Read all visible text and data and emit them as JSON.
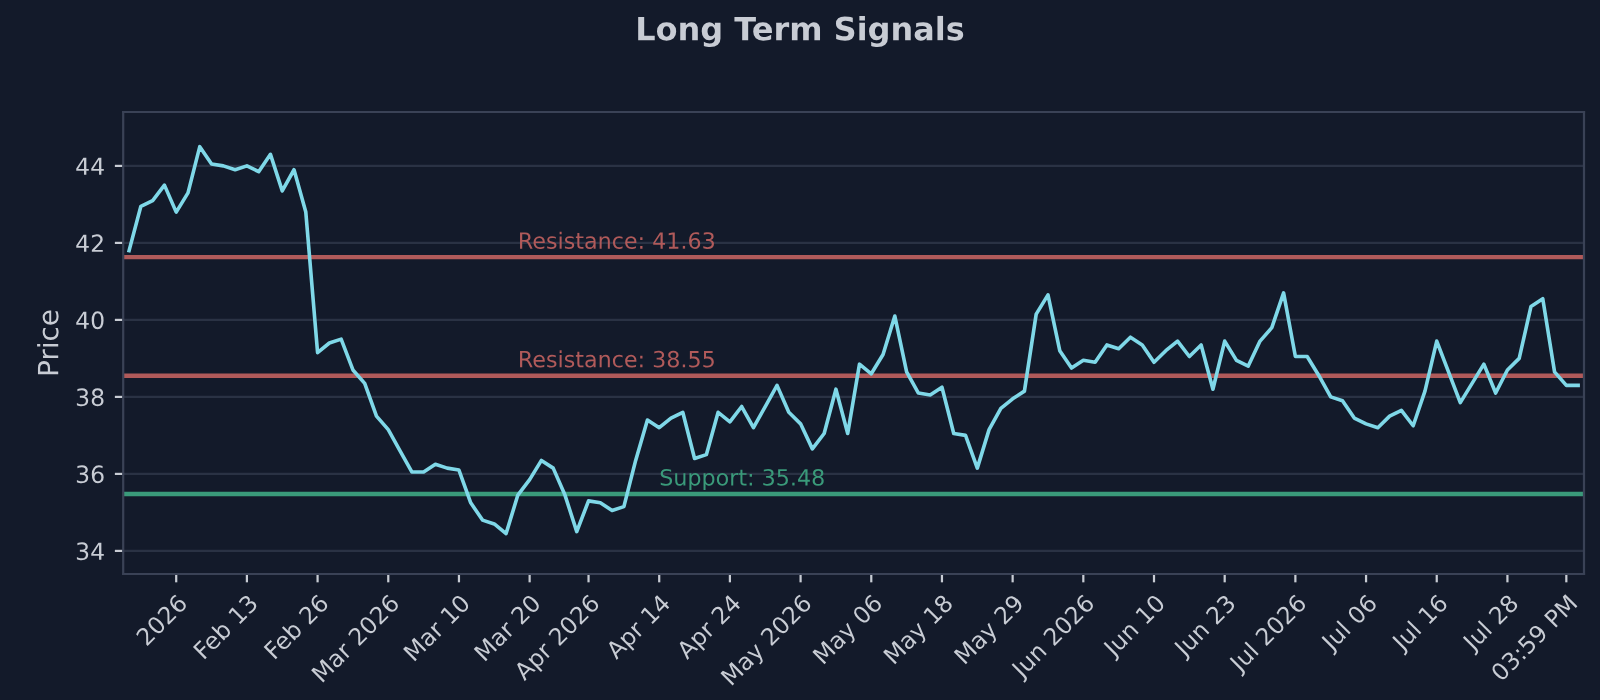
{
  "chart_data": {
    "type": "line",
    "title": "Long Term Signals",
    "ylabel": "Price",
    "categories": [
      null,
      null,
      null,
      null,
      "2026",
      null,
      null,
      null,
      null,
      null,
      "Feb 13",
      null,
      null,
      null,
      null,
      null,
      "Feb 26",
      null,
      null,
      null,
      null,
      null,
      "Mar 2026",
      null,
      null,
      null,
      null,
      null,
      "Mar 10",
      null,
      null,
      null,
      null,
      null,
      "Mar 20",
      null,
      null,
      null,
      null,
      "Apr 2026",
      null,
      null,
      null,
      null,
      null,
      "Apr 14",
      null,
      null,
      null,
      null,
      null,
      "Apr 24",
      null,
      null,
      null,
      null,
      null,
      "May 2026",
      null,
      null,
      null,
      null,
      null,
      "May 06",
      null,
      null,
      null,
      null,
      null,
      "May 18",
      null,
      null,
      null,
      null,
      null,
      "May 29",
      null,
      null,
      null,
      null,
      null,
      "Jun 2026",
      null,
      null,
      null,
      null,
      null,
      "Jun 10",
      null,
      null,
      null,
      null,
      null,
      "Jun 23",
      null,
      null,
      null,
      null,
      null,
      "Jul 2026",
      null,
      null,
      null,
      null,
      null,
      "Jul 06",
      null,
      null,
      null,
      null,
      null,
      "Jul 16",
      null,
      null,
      null,
      null,
      null,
      "Jul 28",
      null,
      null,
      null,
      null,
      "03:59 PM",
      null
    ],
    "series": [
      {
        "color": "#7fd8e8",
        "values": [
          41.8,
          42.95,
          43.1,
          43.5,
          42.8,
          43.3,
          44.5,
          44.05,
          44.0,
          43.9,
          44.0,
          43.85,
          44.3,
          43.35,
          43.9,
          42.8,
          39.15,
          39.4,
          39.5,
          38.7,
          38.35,
          37.5,
          37.15,
          36.6,
          36.05,
          36.05,
          36.25,
          36.15,
          36.1,
          35.25,
          34.8,
          34.7,
          34.45,
          35.45,
          35.85,
          36.35,
          36.15,
          35.45,
          34.5,
          35.3,
          35.25,
          35.05,
          35.15,
          36.35,
          37.4,
          37.2,
          37.45,
          37.6,
          36.4,
          36.5,
          37.6,
          37.35,
          37.75,
          37.2,
          37.75,
          38.3,
          37.6,
          37.3,
          36.65,
          37.05,
          38.2,
          37.05,
          38.85,
          38.6,
          39.1,
          40.1,
          38.65,
          38.1,
          38.05,
          38.25,
          37.05,
          37.0,
          36.15,
          37.15,
          37.7,
          37.95,
          38.15,
          40.15,
          40.65,
          39.2,
          38.75,
          38.95,
          38.9,
          39.35,
          39.25,
          39.55,
          39.35,
          38.9,
          39.2,
          39.45,
          39.05,
          39.35,
          38.2,
          39.45,
          38.95,
          38.8,
          39.45,
          39.8,
          40.7,
          39.05,
          39.05,
          38.55,
          38.0,
          37.9,
          37.45,
          37.3,
          37.2,
          37.5,
          37.65,
          37.25,
          38.15,
          39.45,
          38.65,
          37.85,
          38.35,
          38.85,
          38.1,
          38.7,
          39.0,
          40.35,
          40.55,
          38.65,
          38.3,
          38.3
        ]
      }
    ],
    "ylim": [
      33.4,
      45.4
    ],
    "yticks": [
      34,
      36,
      38,
      40,
      42,
      44
    ],
    "grid": "y",
    "marker": "none",
    "line_style": "solid",
    "ref_lines": [
      {
        "axis": "y",
        "value": 41.63,
        "label": "Resistance: 41.63",
        "color": "#b05a5a"
      },
      {
        "axis": "y",
        "value": 38.55,
        "label": "Resistance: 38.55",
        "color": "#b05a5a"
      },
      {
        "axis": "y",
        "value": 35.48,
        "label": "Support: 35.48",
        "color": "#3a9a7a"
      }
    ]
  }
}
